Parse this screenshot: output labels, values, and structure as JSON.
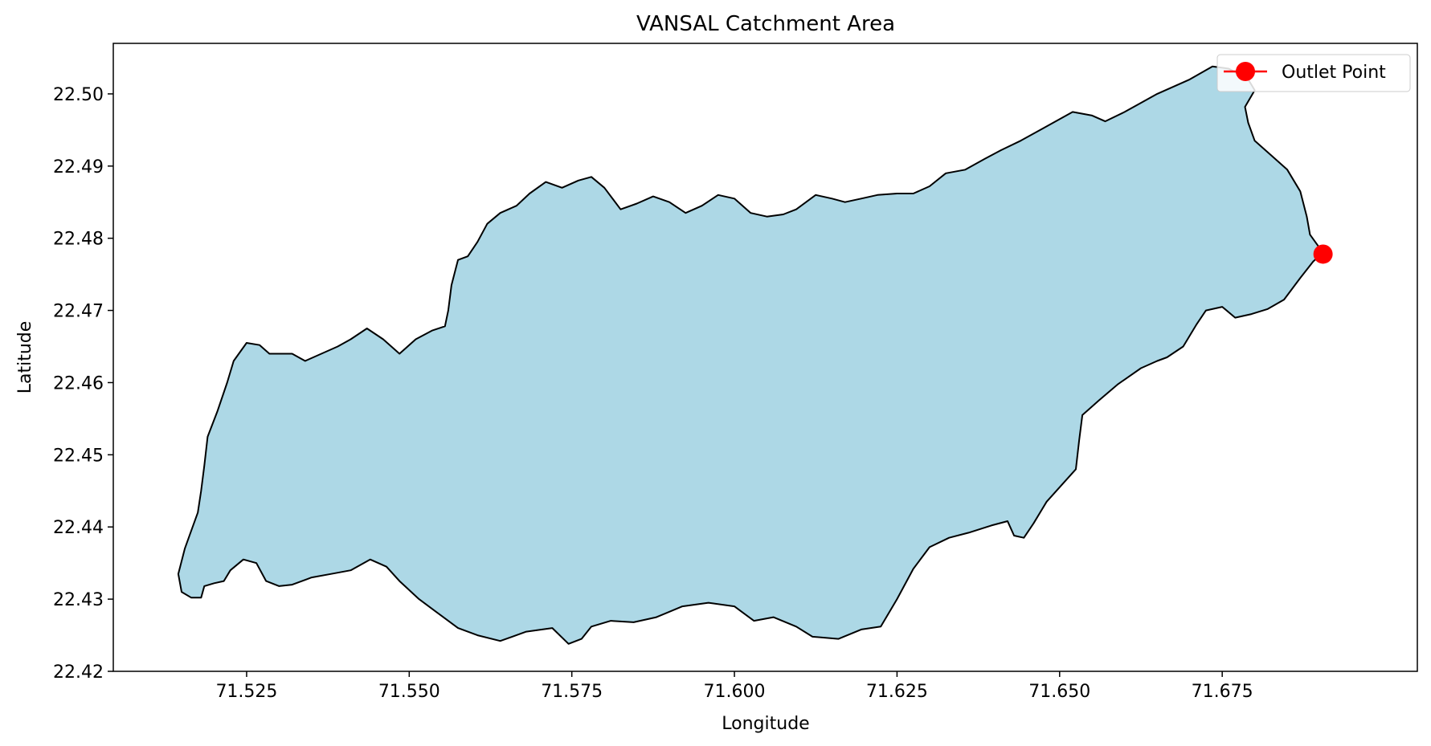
{
  "chart_data": {
    "type": "map",
    "title": "VANSAL Catchment Area",
    "xlabel": "Longitude",
    "ylabel": "Latitude",
    "xlim": [
      71.5045,
      71.705
    ],
    "ylim": [
      22.42,
      22.507
    ],
    "x_ticks": [
      "71.525",
      "71.550",
      "71.575",
      "71.600",
      "71.625",
      "71.650",
      "71.675"
    ],
    "y_ticks": [
      "22.42",
      "22.43",
      "22.44",
      "22.45",
      "22.46",
      "22.47",
      "22.48",
      "22.49",
      "22.50"
    ],
    "grid": false,
    "legend_position": "top-right",
    "legend": [
      {
        "label": "Outlet Point",
        "marker": "circle",
        "color": "#ff0000"
      }
    ],
    "catchment": {
      "fill_color": "#add8e6",
      "edge_color": "#000000",
      "boundary": [
        [
          71.5145,
          22.4335
        ],
        [
          71.515,
          22.431
        ],
        [
          71.5165,
          22.4302
        ],
        [
          71.518,
          22.4302
        ],
        [
          71.5185,
          22.4318
        ],
        [
          71.52,
          22.4322
        ],
        [
          71.5215,
          22.4325
        ],
        [
          71.5225,
          22.434
        ],
        [
          71.5245,
          22.4355
        ],
        [
          71.5265,
          22.435
        ],
        [
          71.528,
          22.4325
        ],
        [
          71.53,
          22.4318
        ],
        [
          71.532,
          22.432
        ],
        [
          71.535,
          22.433
        ],
        [
          71.538,
          22.4335
        ],
        [
          71.541,
          22.434
        ],
        [
          71.544,
          22.4355
        ],
        [
          71.5465,
          22.4345
        ],
        [
          71.5485,
          22.4325
        ],
        [
          71.5515,
          22.43
        ],
        [
          71.5545,
          22.428
        ],
        [
          71.5575,
          22.426
        ],
        [
          71.5605,
          22.425
        ],
        [
          71.564,
          22.4242
        ],
        [
          71.568,
          22.4255
        ],
        [
          71.572,
          22.426
        ],
        [
          71.5745,
          22.4238
        ],
        [
          71.5765,
          22.4245
        ],
        [
          71.578,
          22.4262
        ],
        [
          71.581,
          22.427
        ],
        [
          71.5845,
          22.4268
        ],
        [
          71.588,
          22.4275
        ],
        [
          71.592,
          22.429
        ],
        [
          71.596,
          22.4295
        ],
        [
          71.6,
          22.429
        ],
        [
          71.603,
          22.427
        ],
        [
          71.606,
          22.4275
        ],
        [
          71.6095,
          22.4262
        ],
        [
          71.612,
          22.4248
        ],
        [
          71.616,
          22.4245
        ],
        [
          71.6195,
          22.4258
        ],
        [
          71.6225,
          22.4262
        ],
        [
          71.625,
          22.43
        ],
        [
          71.6275,
          22.4342
        ],
        [
          71.63,
          22.4372
        ],
        [
          71.633,
          22.4385
        ],
        [
          71.636,
          22.4392
        ],
        [
          71.6395,
          22.4402
        ],
        [
          71.642,
          22.4408
        ],
        [
          71.643,
          22.4388
        ],
        [
          71.6445,
          22.4385
        ],
        [
          71.646,
          22.4405
        ],
        [
          71.648,
          22.4435
        ],
        [
          71.6505,
          22.446
        ],
        [
          71.6525,
          22.448
        ],
        [
          71.653,
          22.452
        ],
        [
          71.6535,
          22.4555
        ],
        [
          71.656,
          22.4575
        ],
        [
          71.659,
          22.4598
        ],
        [
          71.6625,
          22.462
        ],
        [
          71.665,
          22.463
        ],
        [
          71.6665,
          22.4635
        ],
        [
          71.669,
          22.465
        ],
        [
          71.671,
          22.468
        ],
        [
          71.6725,
          22.47
        ],
        [
          71.675,
          22.4705
        ],
        [
          71.677,
          22.469
        ],
        [
          71.6795,
          22.4695
        ],
        [
          71.682,
          22.4702
        ],
        [
          71.6845,
          22.4715
        ],
        [
          71.687,
          22.4745
        ],
        [
          71.689,
          22.4768
        ],
        [
          71.6905,
          22.478
        ],
        [
          71.6885,
          22.4805
        ],
        [
          71.688,
          22.483
        ],
        [
          71.687,
          22.4865
        ],
        [
          71.685,
          22.4895
        ],
        [
          71.6825,
          22.4915
        ],
        [
          71.68,
          22.4935
        ],
        [
          71.679,
          22.496
        ],
        [
          71.6785,
          22.4982
        ],
        [
          71.68,
          22.5005
        ],
        [
          71.679,
          22.502
        ],
        [
          71.676,
          22.5035
        ],
        [
          71.6735,
          22.5038
        ],
        [
          71.67,
          22.502
        ],
        [
          71.665,
          22.5
        ],
        [
          71.66,
          22.4975
        ],
        [
          71.657,
          22.4962
        ],
        [
          71.655,
          22.497
        ],
        [
          71.652,
          22.4975
        ],
        [
          71.65,
          22.4965
        ],
        [
          71.647,
          22.495
        ],
        [
          71.644,
          22.4935
        ],
        [
          71.641,
          22.4922
        ],
        [
          71.6385,
          22.491
        ],
        [
          71.6355,
          22.4895
        ],
        [
          71.6325,
          22.489
        ],
        [
          71.63,
          22.4872
        ],
        [
          71.6275,
          22.4862
        ],
        [
          71.625,
          22.4862
        ],
        [
          71.622,
          22.486
        ],
        [
          71.6195,
          22.4855
        ],
        [
          71.617,
          22.485
        ],
        [
          71.615,
          22.4855
        ],
        [
          71.6125,
          22.486
        ],
        [
          71.6095,
          22.484
        ],
        [
          71.6075,
          22.4833
        ],
        [
          71.605,
          22.483
        ],
        [
          71.6025,
          22.4835
        ],
        [
          71.6,
          22.4855
        ],
        [
          71.5975,
          22.486
        ],
        [
          71.595,
          22.4845
        ],
        [
          71.5925,
          22.4835
        ],
        [
          71.59,
          22.485
        ],
        [
          71.5875,
          22.4858
        ],
        [
          71.585,
          22.4848
        ],
        [
          71.5825,
          22.484
        ],
        [
          71.58,
          22.487
        ],
        [
          71.578,
          22.4885
        ],
        [
          71.576,
          22.488
        ],
        [
          71.5735,
          22.487
        ],
        [
          71.571,
          22.4878
        ],
        [
          71.5685,
          22.4862
        ],
        [
          71.5665,
          22.4845
        ],
        [
          71.564,
          22.4835
        ],
        [
          71.562,
          22.482
        ],
        [
          71.5605,
          22.4795
        ],
        [
          71.559,
          22.4775
        ],
        [
          71.5575,
          22.477
        ],
        [
          71.5565,
          22.4735
        ],
        [
          71.556,
          22.47
        ],
        [
          71.5555,
          22.4678
        ],
        [
          71.5535,
          22.4672
        ],
        [
          71.551,
          22.466
        ],
        [
          71.5485,
          22.464
        ],
        [
          71.546,
          22.466
        ],
        [
          71.5435,
          22.4675
        ],
        [
          71.541,
          22.466
        ],
        [
          71.539,
          22.465
        ],
        [
          71.5365,
          22.464
        ],
        [
          71.534,
          22.463
        ],
        [
          71.532,
          22.464
        ],
        [
          71.53,
          22.464
        ],
        [
          71.5285,
          22.464
        ],
        [
          71.527,
          22.4652
        ],
        [
          71.525,
          22.4655
        ],
        [
          71.523,
          22.463
        ],
        [
          71.522,
          22.46
        ],
        [
          71.5205,
          22.456
        ],
        [
          71.519,
          22.4525
        ],
        [
          71.5185,
          22.4485
        ],
        [
          71.518,
          22.445
        ],
        [
          71.5175,
          22.442
        ],
        [
          71.5165,
          22.4395
        ],
        [
          71.5155,
          22.437
        ]
      ]
    },
    "outlet_point": {
      "x": 71.6905,
      "y": 22.4778,
      "color": "#ff0000"
    }
  }
}
